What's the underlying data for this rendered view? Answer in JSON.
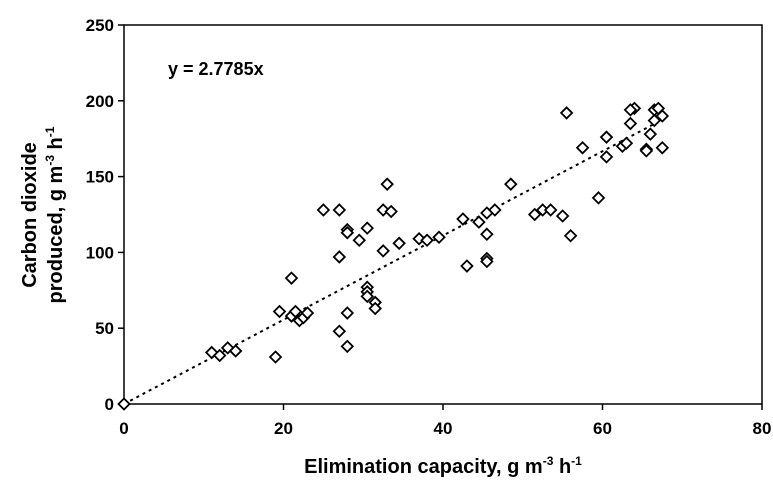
{
  "chart_data": {
    "type": "scatter",
    "title": "",
    "xlabel": "Elimination capacity, g m",
    "xlabel_sup1": "-3",
    "xlabel_mid": " h",
    "xlabel_sup2": "-1",
    "ylabel_line1": "Carbon dioxide",
    "ylabel_line2": "produced, g m",
    "ylabel_sup1": "-3",
    "ylabel_mid": " h",
    "ylabel_sup2": "-1",
    "xlim": [
      0,
      80
    ],
    "ylim": [
      0,
      250
    ],
    "xticks": [
      "0",
      "20",
      "40",
      "60",
      "80"
    ],
    "yticks": [
      "0",
      "50",
      "100",
      "150",
      "200",
      "250"
    ],
    "grid": false,
    "legend": "none",
    "annotation": "y = 2.7785x",
    "trendline": {
      "type": "linear",
      "slope": 2.7785,
      "intercept": 0,
      "x_range": [
        0,
        67
      ],
      "style": "dotted"
    },
    "marker": "diamond-open",
    "series": [
      {
        "points": [
          [
            0,
            0
          ],
          [
            11,
            34
          ],
          [
            12,
            32
          ],
          [
            13,
            37
          ],
          [
            14,
            35
          ],
          [
            19,
            31
          ],
          [
            19.5,
            61
          ],
          [
            21,
            83
          ],
          [
            21,
            58
          ],
          [
            21.5,
            61
          ],
          [
            22,
            55
          ],
          [
            22.5,
            57
          ],
          [
            23,
            60
          ],
          [
            25,
            128
          ],
          [
            27,
            128
          ],
          [
            27,
            97
          ],
          [
            27,
            48
          ],
          [
            28,
            115
          ],
          [
            28,
            113
          ],
          [
            28,
            60
          ],
          [
            28,
            38
          ],
          [
            29.5,
            108
          ],
          [
            30.5,
            116
          ],
          [
            30.5,
            77
          ],
          [
            30.5,
            74
          ],
          [
            30.5,
            71
          ],
          [
            31.5,
            67
          ],
          [
            31.5,
            63
          ],
          [
            32.5,
            128
          ],
          [
            33,
            145
          ],
          [
            33.5,
            127
          ],
          [
            32.5,
            101
          ],
          [
            34.5,
            106
          ],
          [
            37,
            109
          ],
          [
            38,
            108
          ],
          [
            39.5,
            110
          ],
          [
            42.5,
            122
          ],
          [
            43,
            91
          ],
          [
            44.5,
            120
          ],
          [
            45.5,
            112
          ],
          [
            45.5,
            96
          ],
          [
            45.5,
            94
          ],
          [
            45.5,
            126
          ],
          [
            46.5,
            128
          ],
          [
            48.5,
            145
          ],
          [
            51.5,
            125
          ],
          [
            52.5,
            128
          ],
          [
            53.5,
            128
          ],
          [
            55,
            124
          ],
          [
            55.5,
            192
          ],
          [
            56,
            111
          ],
          [
            57.5,
            169
          ],
          [
            59.5,
            136
          ],
          [
            60.5,
            176
          ],
          [
            60.5,
            163
          ],
          [
            62.5,
            170
          ],
          [
            63,
            172
          ],
          [
            63.5,
            185
          ],
          [
            64,
            195
          ],
          [
            63.5,
            194
          ],
          [
            65.5,
            168
          ],
          [
            65.5,
            167
          ],
          [
            66,
            178
          ],
          [
            66.5,
            187
          ],
          [
            66.5,
            194
          ],
          [
            67,
            195
          ],
          [
            67.5,
            190
          ],
          [
            67.5,
            169
          ]
        ]
      }
    ]
  }
}
